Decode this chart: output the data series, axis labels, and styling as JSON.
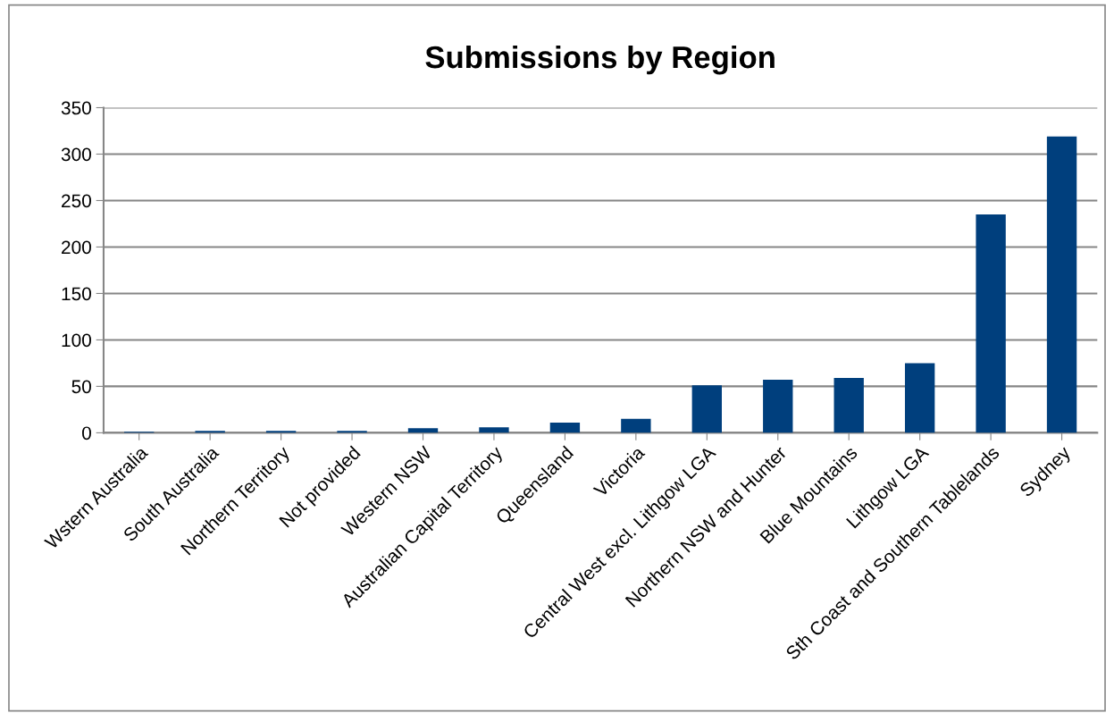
{
  "chart_data": {
    "type": "bar",
    "title": "Submissions by Region",
    "categories": [
      "Wstern Australia",
      "South Australia",
      "Northern Territory",
      "Not provided",
      "Western NSW",
      "Australian Capital Territory",
      "Queensland",
      "Victoria",
      "Central West excl. Lithgow LGA",
      "Northern NSW and Hunter",
      "Blue Mountains",
      "Lithgow LGA",
      "Sth Coast and Southern Tablelands",
      "Sydney"
    ],
    "values": [
      1,
      2,
      2,
      2,
      5,
      6,
      11,
      15,
      51,
      57,
      59,
      75,
      235,
      319
    ],
    "color": "#003f7d",
    "ylim": [
      0,
      350
    ],
    "yticks": [
      0,
      50,
      100,
      150,
      200,
      250,
      300,
      350
    ],
    "grid": "y"
  }
}
